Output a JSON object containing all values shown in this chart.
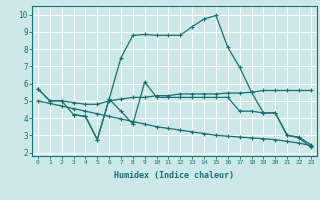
{
  "bg_color": "#cce8e8",
  "line_color": "#1a7070",
  "grid_color": "#ffffff",
  "xlabel": "Humidex (Indice chaleur)",
  "x_ticks": [
    0,
    1,
    2,
    3,
    4,
    5,
    6,
    7,
    8,
    9,
    10,
    11,
    12,
    13,
    14,
    15,
    16,
    17,
    18,
    19,
    20,
    21,
    22,
    23
  ],
  "y_ticks": [
    2,
    3,
    4,
    5,
    6,
    7,
    8,
    9,
    10
  ],
  "ylim": [
    1.8,
    10.5
  ],
  "xlim": [
    -0.5,
    23.5
  ],
  "line1_x": [
    0,
    1,
    2,
    3,
    4,
    5,
    6,
    7,
    8,
    9,
    10,
    11,
    12,
    13,
    14,
    15,
    16,
    17,
    18,
    19,
    20,
    21,
    22,
    23
  ],
  "line1_y": [
    5.7,
    5.0,
    5.0,
    4.9,
    4.8,
    4.8,
    5.0,
    5.1,
    5.2,
    5.2,
    5.3,
    5.3,
    5.4,
    5.4,
    5.4,
    5.4,
    5.45,
    5.45,
    5.5,
    5.6,
    5.6,
    5.6,
    5.6,
    5.6
  ],
  "line2_x": [
    0,
    1,
    2,
    3,
    4,
    5,
    6,
    7,
    8,
    9,
    10,
    11,
    12,
    13,
    14,
    15,
    16,
    17,
    18,
    19,
    20,
    21,
    22,
    23
  ],
  "line2_y": [
    5.7,
    5.0,
    5.0,
    4.2,
    4.1,
    2.75,
    5.1,
    7.5,
    8.8,
    8.85,
    8.8,
    8.8,
    8.8,
    9.3,
    9.75,
    9.95,
    8.1,
    6.95,
    5.5,
    4.3,
    4.3,
    3.0,
    2.85,
    2.3
  ],
  "line3_x": [
    0,
    1,
    2,
    3,
    4,
    5,
    6,
    7,
    8,
    9,
    10,
    11,
    12,
    13,
    14,
    15,
    16,
    17,
    18,
    19,
    20,
    21,
    22,
    23
  ],
  "line3_y": [
    5.0,
    4.85,
    4.7,
    4.55,
    4.4,
    4.25,
    4.1,
    3.95,
    3.8,
    3.65,
    3.5,
    3.4,
    3.3,
    3.2,
    3.1,
    3.0,
    2.95,
    2.9,
    2.85,
    2.8,
    2.75,
    2.65,
    2.55,
    2.4
  ],
  "line4_x": [
    3,
    4,
    5,
    6,
    7,
    8,
    9,
    10,
    11,
    12,
    13,
    14,
    15,
    16,
    17,
    18,
    19,
    20,
    21,
    22,
    23
  ],
  "line4_y": [
    4.2,
    4.1,
    2.75,
    5.1,
    4.4,
    3.65,
    6.1,
    5.2,
    5.2,
    5.2,
    5.2,
    5.2,
    5.2,
    5.2,
    4.4,
    4.4,
    4.3,
    4.3,
    3.0,
    2.9,
    2.45
  ]
}
